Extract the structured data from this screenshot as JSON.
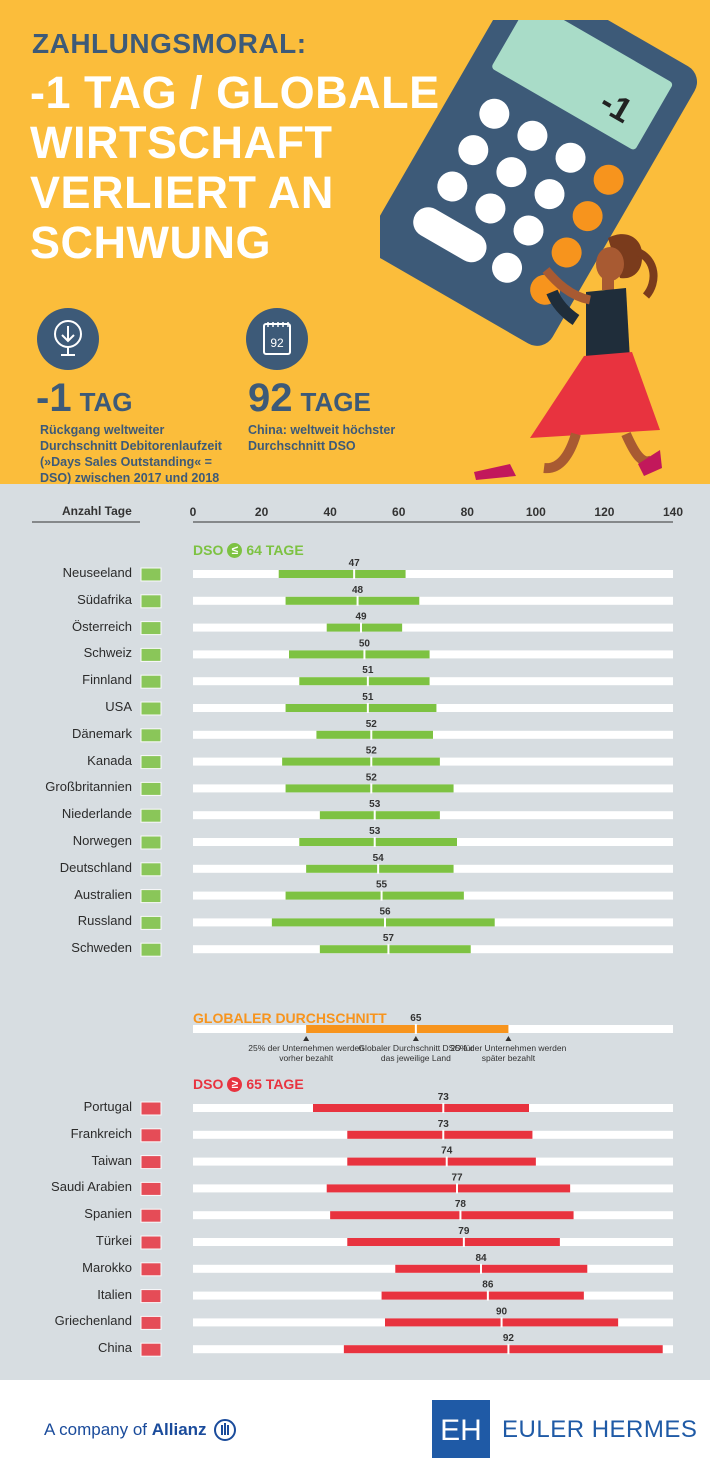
{
  "header": {
    "kicker": "ZAHLUNGSMORAL:",
    "headline": "-1 TAG / GLOBALE WIRTSCHAFT VERLIERT AN SCHWUNG",
    "calculator_display": "-1",
    "stats": [
      {
        "value": "-1",
        "unit": "TAG",
        "description": "Rückgang weltweiter Durchschnitt Debitorenlaufzeit (»Days Sales Outstanding« = DSO) zwischen 2017 und 2018",
        "icon": "globe-down-icon"
      },
      {
        "value": "92",
        "unit": "TAGE",
        "description": "China: weltweit höchster Durchschnitt DSO",
        "icon": "calendar-icon",
        "icon_text": "92"
      }
    ]
  },
  "colors": {
    "header_bg": "#fbbd3b",
    "navy": "#3d5a78",
    "green": "#7dc242",
    "orange": "#f7941d",
    "red": "#e8333f",
    "panel_bg": "#d7dde1",
    "track": "#ffffff"
  },
  "chart_data": {
    "type": "bar",
    "axis_title": "Anzahl Tage",
    "xlim": [
      0,
      140
    ],
    "ticks": [
      0,
      20,
      40,
      60,
      80,
      100,
      120,
      140
    ],
    "groups": [
      {
        "label_prefix": "DSO",
        "symbol": "≤",
        "label_suffix": "64 TAGE",
        "color": "#7dc242",
        "rows": [
          {
            "country": "Neuseeland",
            "q1": 25,
            "median": 47,
            "q3": 62
          },
          {
            "country": "Südafrika",
            "q1": 27,
            "median": 48,
            "q3": 66
          },
          {
            "country": "Österreich",
            "q1": 39,
            "median": 49,
            "q3": 61
          },
          {
            "country": "Schweiz",
            "q1": 28,
            "median": 50,
            "q3": 69
          },
          {
            "country": "Finnland",
            "q1": 31,
            "median": 51,
            "q3": 69
          },
          {
            "country": "USA",
            "q1": 27,
            "median": 51,
            "q3": 71
          },
          {
            "country": "Dänemark",
            "q1": 36,
            "median": 52,
            "q3": 70
          },
          {
            "country": "Kanada",
            "q1": 26,
            "median": 52,
            "q3": 72
          },
          {
            "country": "Großbritannien",
            "q1": 27,
            "median": 52,
            "q3": 76
          },
          {
            "country": "Niederlande",
            "q1": 37,
            "median": 53,
            "q3": 72
          },
          {
            "country": "Norwegen",
            "q1": 31,
            "median": 53,
            "q3": 77
          },
          {
            "country": "Deutschland",
            "q1": 33,
            "median": 54,
            "q3": 76
          },
          {
            "country": "Australien",
            "q1": 27,
            "median": 55,
            "q3": 79
          },
          {
            "country": "Russland",
            "q1": 23,
            "median": 56,
            "q3": 88
          },
          {
            "country": "Schweden",
            "q1": 37,
            "median": 57,
            "q3": 81
          }
        ]
      },
      {
        "label_prefix": "DSO",
        "symbol": "≥",
        "label_suffix": "65 TAGE",
        "color": "#e8333f",
        "rows": [
          {
            "country": "Portugal",
            "q1": 35,
            "median": 73,
            "q3": 98
          },
          {
            "country": "Frankreich",
            "q1": 45,
            "median": 73,
            "q3": 99
          },
          {
            "country": "Taiwan",
            "q1": 45,
            "median": 74,
            "q3": 100
          },
          {
            "country": "Saudi Arabien",
            "q1": 39,
            "median": 77,
            "q3": 110
          },
          {
            "country": "Spanien",
            "q1": 40,
            "median": 78,
            "q3": 111
          },
          {
            "country": "Türkei",
            "q1": 45,
            "median": 79,
            "q3": 107
          },
          {
            "country": "Marokko",
            "q1": 59,
            "median": 84,
            "q3": 115
          },
          {
            "country": "Italien",
            "q1": 55,
            "median": 86,
            "q3": 114
          },
          {
            "country": "Griechenland",
            "q1": 56,
            "median": 90,
            "q3": 124
          },
          {
            "country": "China",
            "q1": 44,
            "median": 92,
            "q3": 137
          }
        ]
      }
    ],
    "global_average": {
      "label": "GLOBALER DURCHSCHNITT",
      "q1": 33,
      "median": 65,
      "q3": 92,
      "color": "#f7941d",
      "notes": [
        "25% der Unternehmen werden vorher bezahlt",
        "Globaler Durchschnitt DSO für das jeweilige Land",
        "25% der Unternehmen werden später bezahlt"
      ]
    }
  },
  "footer": {
    "allianz_prefix": "A company of",
    "allianz_name": "Allianz",
    "brand": "EULER HERMES",
    "brand_initials": "EH"
  }
}
